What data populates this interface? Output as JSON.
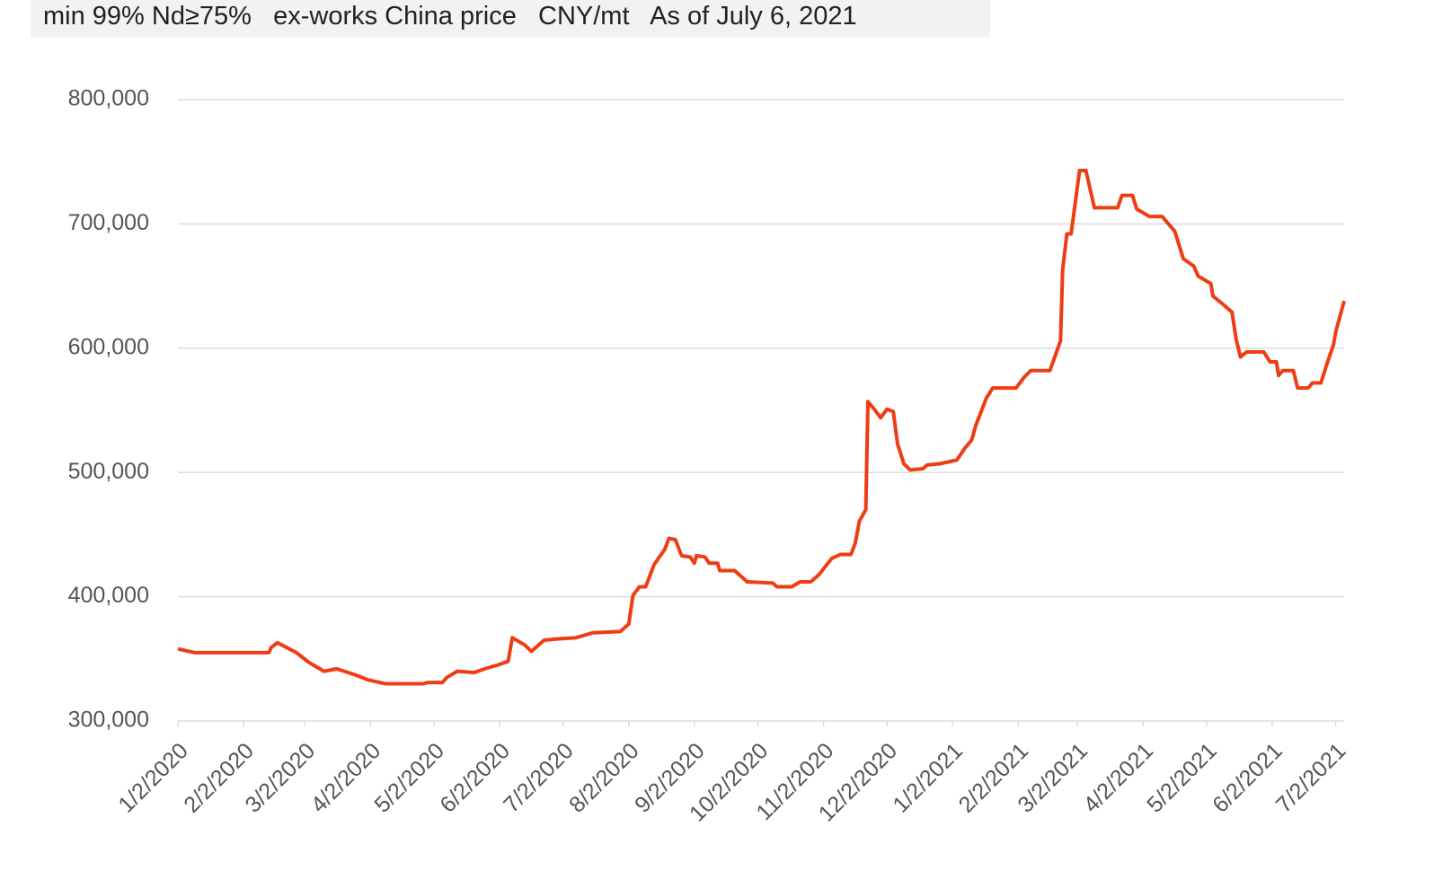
{
  "chart_data": {
    "type": "line",
    "title": "min 99% Nd≥75%   ex-works China price   CNY/mt   As of July 6, 2021",
    "color": "#f03c14",
    "grid": true,
    "x": [
      "1/2/2020",
      "1/10/2020",
      "2/14/2020",
      "2/15/2020",
      "2/18/2020",
      "2/27/2020",
      "3/4/2020",
      "3/11/2020",
      "3/17/2020",
      "3/26/2020",
      "4/1/2020",
      "4/9/2020",
      "4/27/2020",
      "4/29/2020",
      "5/6/2020",
      "5/8/2020",
      "5/13/2020",
      "5/21/2020",
      "5/26/2020",
      "6/1/2020",
      "6/6/2020",
      "6/8/2020",
      "6/14/2020",
      "6/17/2020",
      "6/23/2020",
      "6/29/2020",
      "7/8/2020",
      "7/16/2020",
      "7/29/2020",
      "8/2/2020",
      "8/4/2020",
      "8/7/2020",
      "8/10/2020",
      "8/14/2020",
      "8/19/2020",
      "8/21/2020",
      "8/24/2020",
      "8/27/2020",
      "8/31/2020",
      "9/2/2020",
      "9/3/2020",
      "9/7/2020",
      "9/9/2020",
      "9/13/2020",
      "9/14/2020",
      "9/21/2020",
      "9/27/2020",
      "10/9/2020",
      "10/11/2020",
      "10/18/2020",
      "10/22/2020",
      "10/27/2020",
      "10/31/2020",
      "11/6/2020",
      "11/10/2020",
      "11/15/2020",
      "11/17/2020",
      "11/19/2020",
      "11/22/2020",
      "11/23/2020",
      "11/26/2020",
      "11/29/2020",
      "12/2/2020",
      "12/5/2020",
      "12/7/2020",
      "12/10/2020",
      "12/13/2020",
      "12/19/2020",
      "12/21/2020",
      "12/27/2020",
      "1/4/2021",
      "1/6/2021",
      "1/8/2021",
      "1/11/2021",
      "1/13/2021",
      "1/18/2021",
      "1/21/2021",
      "2/1/2021",
      "2/5/2021",
      "2/8/2021",
      "2/17/2021",
      "2/22/2021",
      "2/23/2021",
      "2/25/2021",
      "2/27/2021",
      "3/3/2021",
      "3/6/2021",
      "3/8/2021",
      "3/10/2021",
      "3/21/2021",
      "3/23/2021",
      "3/28/2021",
      "3/30/2021",
      "4/5/2021",
      "4/11/2021",
      "4/17/2021",
      "4/21/2021",
      "4/26/2021",
      "4/28/2021",
      "5/4/2021",
      "5/5/2021",
      "5/10/2021",
      "5/14/2021",
      "5/16/2021",
      "5/18/2021",
      "5/21/2021",
      "5/29/2021",
      "6/1/2021",
      "6/4/2021",
      "6/5/2021",
      "6/7/2021",
      "6/12/2021",
      "6/14/2021",
      "6/19/2021",
      "6/21/2021",
      "6/25/2021",
      "6/28/2021",
      "7/1/2021",
      "7/2/2021",
      "7/6/2021"
    ],
    "values": [
      358000,
      355000,
      355000,
      359000,
      363000,
      355000,
      347000,
      340000,
      342000,
      337000,
      333000,
      330000,
      330000,
      331000,
      331000,
      335000,
      340000,
      339000,
      342000,
      345000,
      348000,
      367000,
      361000,
      356000,
      365000,
      366000,
      367000,
      371000,
      372000,
      378000,
      401000,
      408000,
      408000,
      426000,
      438000,
      447000,
      446000,
      433000,
      432000,
      427000,
      433000,
      432000,
      427000,
      427000,
      421000,
      421000,
      412000,
      411000,
      408000,
      408000,
      412000,
      412000,
      418000,
      431000,
      434000,
      434000,
      443000,
      461000,
      470000,
      557000,
      551000,
      544000,
      551000,
      549000,
      523000,
      507000,
      502000,
      503000,
      506000,
      507000,
      510000,
      515000,
      520000,
      526000,
      538000,
      560000,
      568000,
      568000,
      577000,
      582000,
      582000,
      606000,
      663000,
      692000,
      692000,
      743000,
      743000,
      728000,
      713000,
      713000,
      723000,
      723000,
      712000,
      706000,
      706000,
      694000,
      672000,
      666000,
      658000,
      652000,
      642000,
      635000,
      629000,
      607000,
      593000,
      597000,
      597000,
      589000,
      589000,
      578000,
      582000,
      582000,
      568000,
      568000,
      572000,
      572000,
      588000,
      603000,
      613000,
      638000
    ],
    "xlim": [
      "1/2/2020",
      "7/6/2021"
    ],
    "xticks": [
      "1/2/2020",
      "2/2/2020",
      "3/2/2020",
      "4/2/2020",
      "5/2/2020",
      "6/2/2020",
      "7/2/2020",
      "8/2/2020",
      "9/2/2020",
      "10/2/2020",
      "11/2/2020",
      "12/2/2020",
      "1/2/2021",
      "2/2/2021",
      "3/2/2021",
      "4/2/2021",
      "5/2/2021",
      "6/2/2021",
      "7/2/2021"
    ],
    "ylim": [
      300000,
      800000
    ],
    "yticks": [
      {
        "value": 300000,
        "label": "300,000"
      },
      {
        "value": 400000,
        "label": "400,000"
      },
      {
        "value": 500000,
        "label": "500,000"
      },
      {
        "value": 600000,
        "label": "600,000"
      },
      {
        "value": 700000,
        "label": "700,000"
      },
      {
        "value": 800000,
        "label": "800,000"
      }
    ]
  }
}
